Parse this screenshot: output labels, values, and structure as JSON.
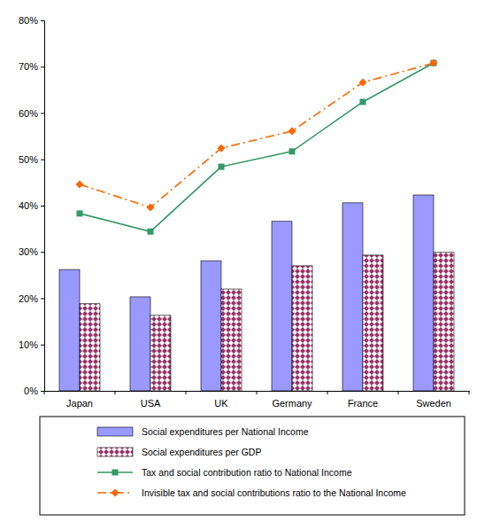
{
  "chart_data": {
    "type": "bar",
    "categories": [
      "Japan",
      "USA",
      "UK",
      "Germany",
      "France",
      "Sweden"
    ],
    "series": [
      {
        "name": "Social expenditures per National Income",
        "type": "bar",
        "color": "#9999ff",
        "values": [
          26.2,
          20.3,
          28.1,
          36.6,
          40.6,
          42.3
        ]
      },
      {
        "name": "Social expenditures per GDP",
        "type": "bar",
        "color": "#993366",
        "values": [
          18.8,
          16.3,
          22.0,
          27.0,
          29.3,
          29.9
        ]
      },
      {
        "name": "Tax and social contribution ratio to National Income",
        "type": "line",
        "color": "#339966",
        "marker": "square",
        "line_style": "solid",
        "values": [
          38.3,
          34.4,
          48.4,
          51.7,
          62.4,
          70.8
        ]
      },
      {
        "name": "Invisible tax and social contributions ratio to the National Income",
        "type": "line",
        "color": "#ff6600",
        "marker": "diamond",
        "line_style": "dashdot",
        "values": [
          44.6,
          39.6,
          52.4,
          56.1,
          66.6,
          70.8
        ]
      }
    ],
    "ylim": [
      0,
      80
    ],
    "yticks": [
      {
        "value": 0,
        "label": "0%"
      },
      {
        "value": 10,
        "label": "10%"
      },
      {
        "value": 20,
        "label": "20%"
      },
      {
        "value": 30,
        "label": "30%"
      },
      {
        "value": 40,
        "label": "40%"
      },
      {
        "value": 50,
        "label": "50%"
      },
      {
        "value": 60,
        "label": "60%"
      },
      {
        "value": 70,
        "label": "70%"
      },
      {
        "value": 80,
        "label": "80%"
      }
    ],
    "grid": false,
    "legend": "bottom"
  }
}
